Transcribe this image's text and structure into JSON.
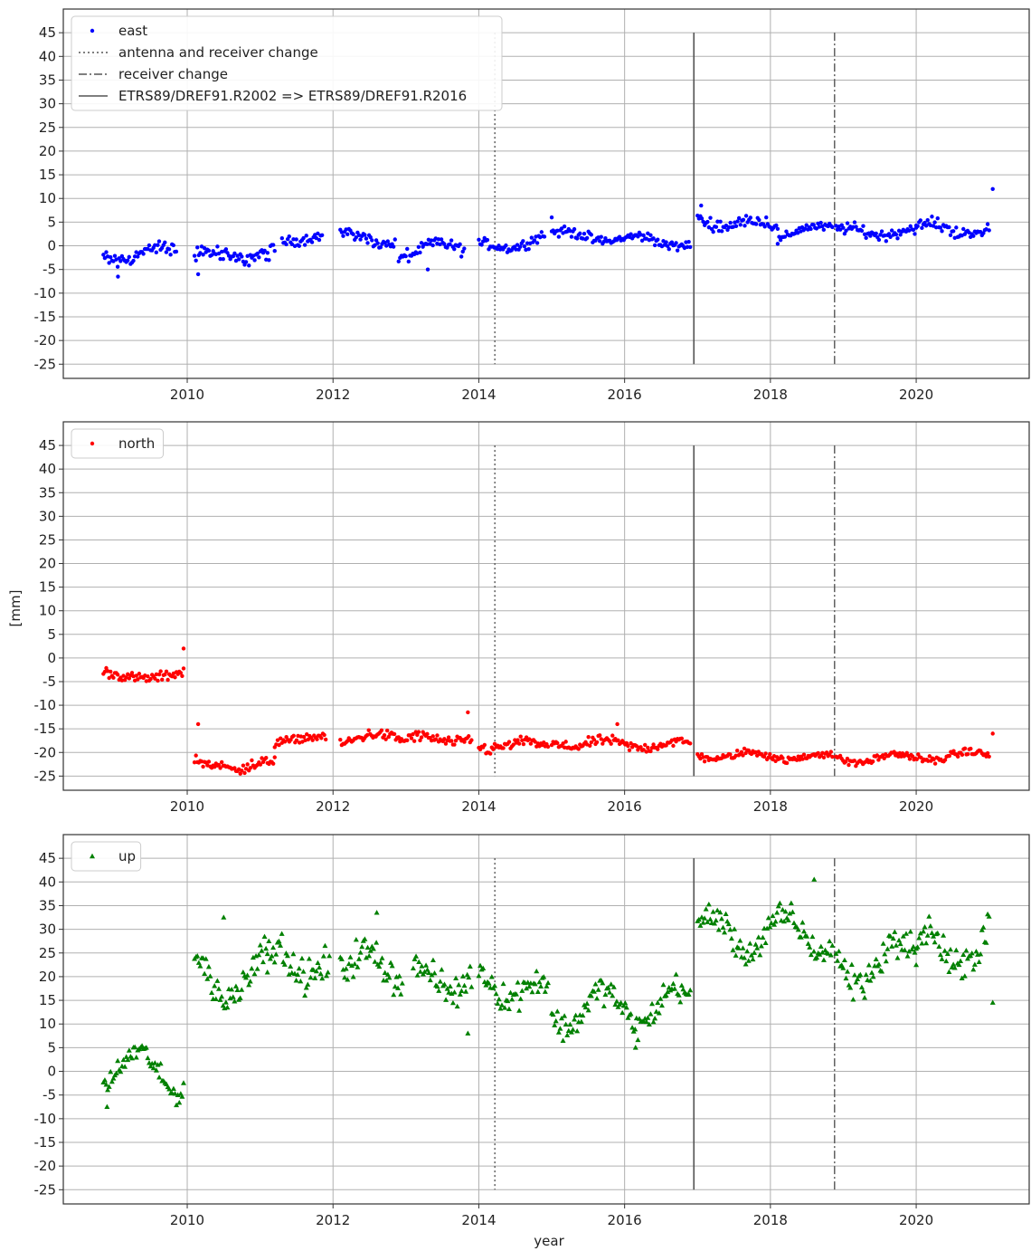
{
  "figure": {
    "ylabel": "[mm]",
    "xlabel": "year"
  },
  "colors": {
    "east": "#0000ff",
    "north": "#ff0000",
    "up": "#008000",
    "event_line": "#555555",
    "grid": "#b0b0b0"
  },
  "legend_labels": {
    "east": "east",
    "north": "north",
    "up": "up",
    "antenna_change": "antenna and receiver change",
    "receiver_change": "receiver change",
    "frame_change": "ETRS89/DREF91.R2002 => ETRS89/DREF91.R2016"
  },
  "chart_data": [
    {
      "type": "scatter",
      "id": "east",
      "marker": "circle",
      "xlim": [
        2008.3,
        2021.55
      ],
      "ylim": [
        -28,
        50
      ],
      "xticks": [
        2010,
        2012,
        2014,
        2016,
        2018,
        2020
      ],
      "yticks": [
        -25,
        -20,
        -15,
        -10,
        -5,
        0,
        5,
        10,
        15,
        20,
        25,
        30,
        35,
        40,
        45
      ],
      "grid": true,
      "legend_position": "top-left",
      "legend": [
        "east",
        "antenna and receiver change",
        "receiver change",
        "ETRS89/DREF91.R2002 => ETRS89/DREF91.R2016"
      ],
      "events": [
        {
          "x": 2014.22,
          "style": "dotted",
          "ymin": -25,
          "ymax": 45
        },
        {
          "x": 2016.95,
          "style": "solid",
          "ymin": -25,
          "ymax": 45
        },
        {
          "x": 2018.88,
          "style": "dashdot",
          "ymin": -25,
          "ymax": 45
        }
      ],
      "segments": [
        {
          "x": [
            2008.85,
            2009.85
          ],
          "y": [
            -2.5,
            -1.0
          ],
          "a": 1.0,
          "scatter": 1.3
        },
        {
          "x": [
            2010.1,
            2011.2
          ],
          "y": [
            -2.0,
            -2.0
          ],
          "a": 0.8,
          "scatter": 1.3
        },
        {
          "x": [
            2011.3,
            2011.85
          ],
          "y": [
            1.5,
            1.5
          ],
          "a": 0.6,
          "scatter": 0.9
        },
        {
          "x": [
            2012.1,
            2012.85
          ],
          "y": [
            2.0,
            1.0
          ],
          "a": 0.8,
          "scatter": 1.0
        },
        {
          "x": [
            2012.9,
            2013.8
          ],
          "y": [
            -1.5,
            0.0
          ],
          "a": 1.2,
          "scatter": 1.2
        },
        {
          "x": [
            2014.0,
            2014.9
          ],
          "y": [
            -0.5,
            1.5
          ],
          "a": 1.0,
          "scatter": 0.9
        },
        {
          "x": [
            2015.0,
            2016.9
          ],
          "y": [
            2.5,
            0.5
          ],
          "a": 0.8,
          "scatter": 0.9
        },
        {
          "x": [
            2017.0,
            2018.1
          ],
          "y": [
            5.5,
            4.0
          ],
          "a": 1.0,
          "scatter": 1.0
        },
        {
          "x": [
            2018.1,
            2018.85
          ],
          "y": [
            1.5,
            4.5
          ],
          "a": 0.8,
          "scatter": 0.8
        },
        {
          "x": [
            2018.9,
            2020.0
          ],
          "y": [
            3.0,
            3.0
          ],
          "a": 0.8,
          "scatter": 1.0
        },
        {
          "x": [
            2020.0,
            2021.0
          ],
          "y": [
            3.5,
            3.5
          ],
          "a": 1.2,
          "scatter": 1.1
        }
      ],
      "outliers": [
        {
          "x": 2021.05,
          "y": 12.0
        },
        {
          "x": 2009.05,
          "y": -6.5
        },
        {
          "x": 2010.15,
          "y": -6.0
        },
        {
          "x": 2015.0,
          "y": 6.0
        },
        {
          "x": 2017.05,
          "y": 8.5
        },
        {
          "x": 2013.3,
          "y": -5.0
        }
      ]
    },
    {
      "type": "scatter",
      "id": "north",
      "marker": "circle",
      "xlim": [
        2008.3,
        2021.55
      ],
      "ylim": [
        -28,
        50
      ],
      "xticks": [
        2010,
        2012,
        2014,
        2016,
        2018,
        2020
      ],
      "yticks": [
        -25,
        -20,
        -15,
        -10,
        -5,
        0,
        5,
        10,
        15,
        20,
        25,
        30,
        35,
        40,
        45
      ],
      "grid": true,
      "legend_position": "top-left",
      "legend": [
        "north"
      ],
      "events": [
        {
          "x": 2014.22,
          "style": "dotted",
          "ymin": -25,
          "ymax": 45
        },
        {
          "x": 2016.95,
          "style": "solid",
          "ymin": -25,
          "ymax": 45
        },
        {
          "x": 2018.88,
          "style": "dashdot",
          "ymin": -25,
          "ymax": 45
        }
      ],
      "segments": [
        {
          "x": [
            2008.85,
            2009.95
          ],
          "y": [
            -2.8,
            -2.8
          ],
          "a": 1.5,
          "scatter": 0.9,
          "curve": "bowl"
        },
        {
          "x": [
            2010.1,
            2011.2
          ],
          "y": [
            -21.5,
            -21.5
          ],
          "a": 1.8,
          "scatter": 1.0,
          "curve": "bowl"
        },
        {
          "x": [
            2011.2,
            2011.9
          ],
          "y": [
            -17.5,
            -17.0
          ],
          "a": 0.4,
          "scatter": 0.8
        },
        {
          "x": [
            2012.1,
            2012.9
          ],
          "y": [
            -17.5,
            -16.5
          ],
          "a": 0.8,
          "scatter": 1.0
        },
        {
          "x": [
            2012.9,
            2013.9
          ],
          "y": [
            -17.5,
            -17.0
          ],
          "a": 0.8,
          "scatter": 1.0
        },
        {
          "x": [
            2014.0,
            2014.95
          ],
          "y": [
            -18.5,
            -18.5
          ],
          "a": 0.8,
          "scatter": 1.0
        },
        {
          "x": [
            2015.0,
            2016.9
          ],
          "y": [
            -18.0,
            -18.5
          ],
          "a": 0.8,
          "scatter": 0.9
        },
        {
          "x": [
            2017.0,
            2018.85
          ],
          "y": [
            -20.5,
            -21.0
          ],
          "a": 0.8,
          "scatter": 0.7
        },
        {
          "x": [
            2018.9,
            2021.0
          ],
          "y": [
            -21.5,
            -20.5
          ],
          "a": 0.8,
          "scatter": 0.7
        }
      ],
      "outliers": [
        {
          "x": 2009.95,
          "y": 2.0
        },
        {
          "x": 2013.85,
          "y": -11.5
        },
        {
          "x": 2021.05,
          "y": -16.0
        },
        {
          "x": 2010.15,
          "y": -14.0
        },
        {
          "x": 2015.9,
          "y": -14.0
        }
      ]
    },
    {
      "type": "scatter",
      "id": "up",
      "marker": "triangle",
      "xlim": [
        2008.3,
        2021.55
      ],
      "ylim": [
        -28,
        50
      ],
      "xticks": [
        2010,
        2012,
        2014,
        2016,
        2018,
        2020
      ],
      "yticks": [
        -25,
        -20,
        -15,
        -10,
        -5,
        0,
        5,
        10,
        15,
        20,
        25,
        30,
        35,
        40,
        45
      ],
      "grid": true,
      "legend_position": "top-left",
      "legend": [
        "up"
      ],
      "events": [
        {
          "x": 2014.22,
          "style": "dotted",
          "ymin": -25,
          "ymax": 45
        },
        {
          "x": 2016.95,
          "style": "solid",
          "ymin": -25,
          "ymax": 45
        },
        {
          "x": 2018.88,
          "style": "dashdot",
          "ymin": -25,
          "ymax": 45
        }
      ],
      "segments": [
        {
          "x": [
            2008.85,
            2009.95
          ],
          "y": [
            1.5,
            -1.0
          ],
          "a": 4.0,
          "scatter": 2.0
        },
        {
          "x": [
            2010.1,
            2011.1
          ],
          "y": [
            20.0,
            20.0
          ],
          "a": 5.0,
          "scatter": 3.0
        },
        {
          "x": [
            2011.1,
            2011.95
          ],
          "y": [
            24.0,
            22.0
          ],
          "a": 3.0,
          "scatter": 3.0
        },
        {
          "x": [
            2012.1,
            2012.95
          ],
          "y": [
            22.5,
            22.0
          ],
          "a": 3.0,
          "scatter": 3.0
        },
        {
          "x": [
            2013.1,
            2013.9
          ],
          "y": [
            19.0,
            20.0
          ],
          "a": 3.0,
          "scatter": 3.0
        },
        {
          "x": [
            2014.0,
            2014.95
          ],
          "y": [
            20.0,
            16.0
          ],
          "a": 3.0,
          "scatter": 2.5
        },
        {
          "x": [
            2015.0,
            2016.9
          ],
          "y": [
            13.0,
            14.0
          ],
          "a": 4.0,
          "scatter": 2.5
        },
        {
          "x": [
            2017.0,
            2018.85
          ],
          "y": [
            29.0,
            29.0
          ],
          "a": 4.0,
          "scatter": 2.5
        },
        {
          "x": [
            2018.9,
            2020.0
          ],
          "y": [
            22.0,
            24.0
          ],
          "a": 4.0,
          "scatter": 3.0
        },
        {
          "x": [
            2020.0,
            2021.0
          ],
          "y": [
            24.0,
            28.0
          ],
          "a": 5.0,
          "scatter": 3.5
        }
      ],
      "outliers": [
        {
          "x": 2008.9,
          "y": -7.5
        },
        {
          "x": 2018.6,
          "y": 40.5
        },
        {
          "x": 2021.05,
          "y": 14.5
        },
        {
          "x": 2013.85,
          "y": 8.0
        },
        {
          "x": 2016.15,
          "y": 5.0
        },
        {
          "x": 2012.6,
          "y": 33.5
        },
        {
          "x": 2010.5,
          "y": 32.5
        }
      ]
    }
  ]
}
